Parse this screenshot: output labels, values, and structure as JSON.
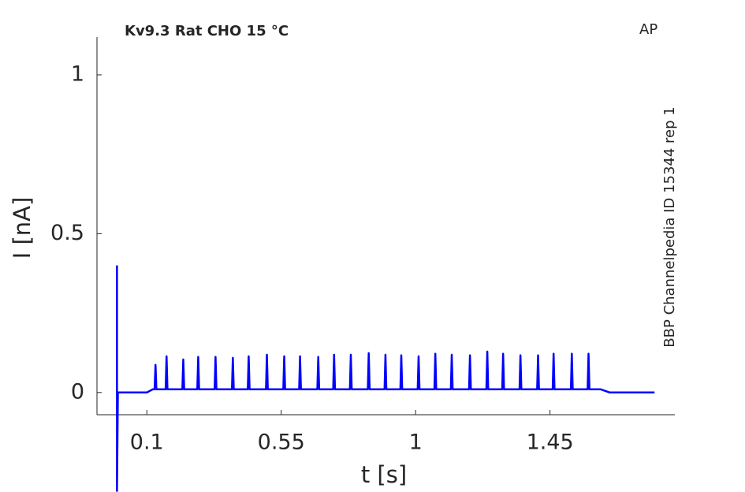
{
  "chart_data": {
    "type": "line",
    "title": "Kv9.3  Rat  CHO  15 °C",
    "annotation": "AP",
    "side_label": "BBP Channelpedia ID 15344 rep 1",
    "x_label": "t [s]",
    "y_label": "I [nA]",
    "xlim": [
      -0.067,
      1.868
    ],
    "ylim": [
      -0.07,
      1.119
    ],
    "xticks": [
      0.1,
      0.55,
      1,
      1.45
    ],
    "yticks": [
      0,
      0.5,
      1
    ],
    "series": [
      {
        "color": "#0000ff",
        "x": [
          0,
          0,
          0.003,
          0.1,
          0.12,
          0.126,
          0.129,
          0.132,
          0.163,
          0.166,
          0.169,
          0.219,
          0.222,
          0.225,
          0.269,
          0.272,
          0.275,
          0.327,
          0.33,
          0.333,
          0.385,
          0.388,
          0.391,
          0.438,
          0.441,
          0.444,
          0.499,
          0.502,
          0.505,
          0.557,
          0.56,
          0.563,
          0.61,
          0.613,
          0.616,
          0.671,
          0.674,
          0.677,
          0.724,
          0.727,
          0.73,
          0.78,
          0.783,
          0.786,
          0.84,
          0.843,
          0.846,
          0.896,
          0.899,
          0.902,
          0.949,
          0.952,
          0.955,
          1.007,
          1.01,
          1.013,
          1.063,
          1.066,
          1.069,
          1.118,
          1.121,
          1.124,
          1.179,
          1.182,
          1.185,
          1.237,
          1.24,
          1.243,
          1.29,
          1.293,
          1.296,
          1.348,
          1.351,
          1.354,
          1.407,
          1.41,
          1.413,
          1.459,
          1.462,
          1.465,
          1.52,
          1.523,
          1.526,
          1.576,
          1.579,
          1.582,
          1.62,
          1.65,
          1.8
        ],
        "values": [
          0.4,
          -0.31,
          0,
          0,
          0.01,
          0.01,
          0.087,
          0.01,
          0.01,
          0.114,
          0.01,
          0.01,
          0.104,
          0.01,
          0.01,
          0.112,
          0.01,
          0.01,
          0.112,
          0.01,
          0.01,
          0.109,
          0.01,
          0.01,
          0.114,
          0.01,
          0.01,
          0.119,
          0.01,
          0.01,
          0.114,
          0.01,
          0.01,
          0.114,
          0.01,
          0.01,
          0.112,
          0.01,
          0.01,
          0.119,
          0.01,
          0.01,
          0.119,
          0.01,
          0.01,
          0.124,
          0.01,
          0.01,
          0.119,
          0.01,
          0.01,
          0.117,
          0.01,
          0.01,
          0.114,
          0.01,
          0.01,
          0.122,
          0.01,
          0.01,
          0.119,
          0.01,
          0.01,
          0.117,
          0.01,
          0.01,
          0.129,
          0.01,
          0.01,
          0.122,
          0.01,
          0.01,
          0.117,
          0.01,
          0.01,
          0.117,
          0.01,
          0.01,
          0.122,
          0.01,
          0.01,
          0.122,
          0.01,
          0.01,
          0.122,
          0.01,
          0.01,
          0,
          0
        ]
      }
    ]
  }
}
